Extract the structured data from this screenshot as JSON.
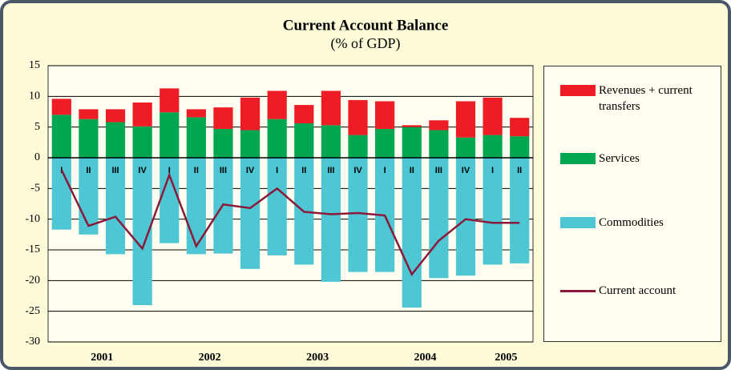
{
  "chart_data": {
    "type": "bar",
    "title": "Current Account Balance",
    "subtitle": "(% of GDP)",
    "categories": [
      "I",
      "II",
      "III",
      "IV",
      "I",
      "II",
      "III",
      "IV",
      "I",
      "II",
      "III",
      "IV",
      "I",
      "II",
      "III",
      "IV",
      "I",
      "II"
    ],
    "years": [
      "2001",
      "2002",
      "2003",
      "2004",
      "2005"
    ],
    "series": [
      {
        "name": "Revenues + current transfers",
        "color": "#ee1c25",
        "kind": "bar",
        "values": [
          2.6,
          1.6,
          2.1,
          3.9,
          3.9,
          1.3,
          3.5,
          5.3,
          4.6,
          3.0,
          5.6,
          5.7,
          4.5,
          0.3,
          1.6,
          5.9,
          6.1,
          3.0
        ]
      },
      {
        "name": "Services",
        "color": "#00a650",
        "kind": "bar",
        "values": [
          7.0,
          6.3,
          5.8,
          5.1,
          7.4,
          6.6,
          4.7,
          4.5,
          6.3,
          5.6,
          5.3,
          3.7,
          4.7,
          5.0,
          4.5,
          3.3,
          3.7,
          3.5
        ]
      },
      {
        "name": "Commodities",
        "color": "#4fc6d3",
        "kind": "bar",
        "values": [
          -11.7,
          -12.5,
          -15.7,
          -24.0,
          -13.9,
          -15.7,
          -15.6,
          -18.1,
          -15.9,
          -17.4,
          -20.2,
          -18.6,
          -18.6,
          -24.4,
          -19.6,
          -19.2,
          -17.4,
          -17.2
        ]
      },
      {
        "name": "Current account",
        "color": "#8b1a3a",
        "kind": "line",
        "values": [
          -2.0,
          -11.1,
          -9.6,
          -14.8,
          -2.8,
          -14.4,
          -7.6,
          -8.2,
          -5.0,
          -8.8,
          -9.2,
          -9.0,
          -9.4,
          -19.0,
          -13.5,
          -10.0,
          -10.6,
          -10.6
        ]
      }
    ],
    "ylim": [
      -30,
      15
    ],
    "yticks": [
      -30,
      -25,
      -20,
      -15,
      -10,
      -5,
      0,
      5,
      10,
      15
    ],
    "grid": true,
    "legend": "right"
  }
}
